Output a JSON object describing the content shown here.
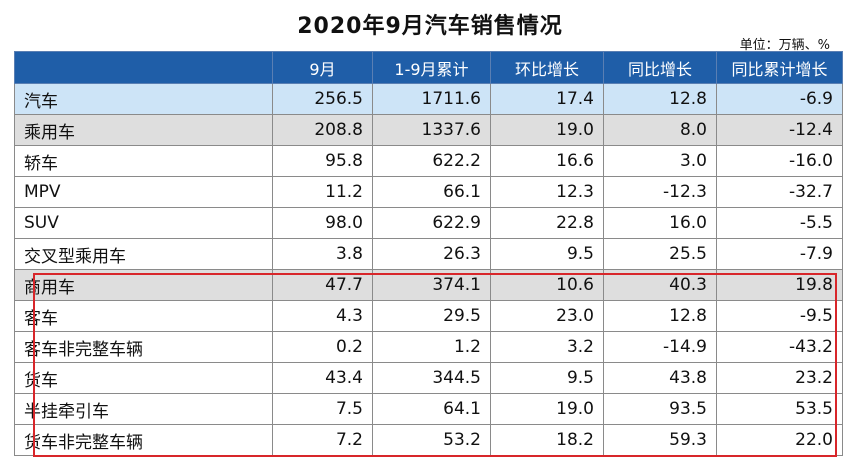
{
  "title": "2020年9月汽车销售情况",
  "unit_note": "单位：万辆、%",
  "columns": [
    "",
    "9月",
    "1-9月累计",
    "环比增长",
    "同比增长",
    "同比累计增长"
  ],
  "rows": [
    {
      "label": "汽车",
      "values": [
        "256.5",
        "1711.6",
        "17.4",
        "12.8",
        "-6.9"
      ]
    },
    {
      "label": "乘用车",
      "values": [
        "208.8",
        "1337.6",
        "19.0",
        "8.0",
        "-12.4"
      ]
    },
    {
      "label": "轿车",
      "values": [
        "95.8",
        "622.2",
        "16.6",
        "3.0",
        "-16.0"
      ]
    },
    {
      "label": "MPV",
      "values": [
        "11.2",
        "66.1",
        "12.3",
        "-12.3",
        "-32.7"
      ]
    },
    {
      "label": "SUV",
      "values": [
        "98.0",
        "622.9",
        "22.8",
        "16.0",
        "-5.5"
      ]
    },
    {
      "label": "交叉型乘用车",
      "values": [
        "3.8",
        "26.3",
        "9.5",
        "25.5",
        "-7.9"
      ]
    },
    {
      "label": "商用车",
      "values": [
        "47.7",
        "374.1",
        "10.6",
        "40.3",
        "19.8"
      ]
    },
    {
      "label": "客车",
      "values": [
        "4.3",
        "29.5",
        "23.0",
        "12.8",
        "-9.5"
      ]
    },
    {
      "label": "客车非完整车辆",
      "values": [
        "0.2",
        "1.2",
        "3.2",
        "-14.9",
        "-43.2"
      ]
    },
    {
      "label": "货车",
      "values": [
        "43.4",
        "344.5",
        "9.5",
        "43.8",
        "23.2"
      ]
    },
    {
      "label": "半挂牵引车",
      "values": [
        "7.5",
        "64.1",
        "19.0",
        "93.5",
        "53.5"
      ]
    },
    {
      "label": "货车非完整车辆",
      "values": [
        "7.2",
        "53.2",
        "18.2",
        "59.3",
        "22.0"
      ]
    }
  ],
  "colors": {
    "header_bg": "#1f5ea8",
    "auto_row_bg": "#cde4f7",
    "category_row_bg": "#dedede",
    "highlight_border": "#d8262a"
  }
}
